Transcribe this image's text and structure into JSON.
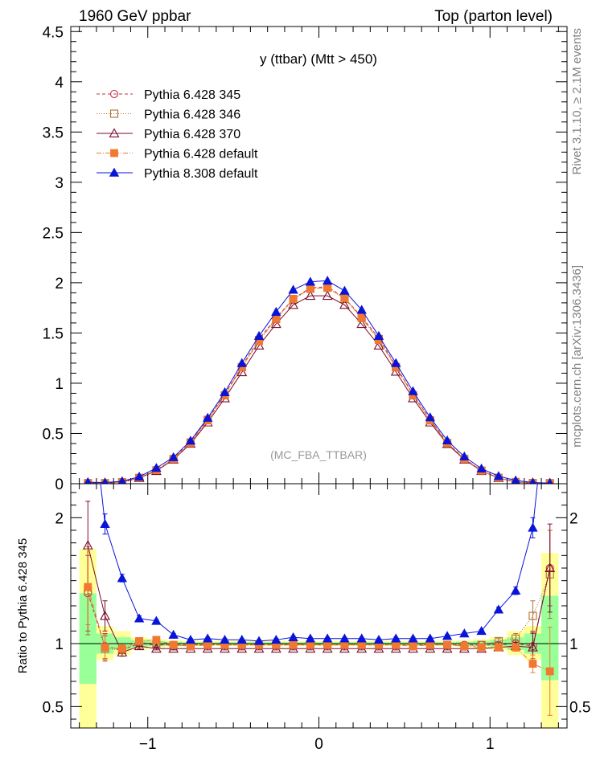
{
  "header": {
    "left": "1960 GeV ppbar",
    "right": "Top (parton level)"
  },
  "side_label_top": "Rivet 3.1.10, ≥ 2.1M events",
  "side_label_bottom": "mcplots.cern.ch [arXiv:1306.3436]",
  "chart_data": [
    {
      "type": "line",
      "title": "y (ttbar) (Mtt > 450)",
      "annotation": "(MC_FBA_TTBAR)",
      "xlim": [
        -1.45,
        1.45
      ],
      "ylim": [
        0,
        4.55
      ],
      "yticks": [
        "0",
        "0.5",
        "1",
        "1.5",
        "2",
        "2.5",
        "3",
        "3.5",
        "4",
        "4.5"
      ],
      "legend_position": "top-left",
      "x": [
        -1.35,
        -1.25,
        -1.15,
        -1.05,
        -0.95,
        -0.85,
        -0.75,
        -0.65,
        -0.55,
        -0.45,
        -0.35,
        -0.25,
        -0.15,
        -0.05,
        0.05,
        0.15,
        0.25,
        0.35,
        0.45,
        0.55,
        0.65,
        0.75,
        0.85,
        0.95,
        1.05,
        1.15,
        1.25,
        1.35
      ],
      "series": [
        {
          "name": "Pythia 6.428 345",
          "color": "#c0304a",
          "marker": "circle-open",
          "dash": "4,3",
          "values": [
            0.004,
            0.006,
            0.016,
            0.058,
            0.132,
            0.25,
            0.415,
            0.64,
            0.89,
            1.17,
            1.44,
            1.65,
            1.84,
            1.95,
            1.96,
            1.85,
            1.66,
            1.45,
            1.17,
            0.89,
            0.64,
            0.41,
            0.25,
            0.13,
            0.058,
            0.016,
            0.006,
            0.004
          ]
        },
        {
          "name": "Pythia 6.428 346",
          "color": "#b07030",
          "marker": "square-open",
          "dash": "1,2",
          "values": [
            0.006,
            0.006,
            0.015,
            0.058,
            0.13,
            0.245,
            0.41,
            0.635,
            0.88,
            1.16,
            1.43,
            1.64,
            1.83,
            1.94,
            1.95,
            1.84,
            1.65,
            1.44,
            1.16,
            0.88,
            0.63,
            0.405,
            0.245,
            0.13,
            0.059,
            0.017,
            0.007,
            0.006
          ]
        },
        {
          "name": "Pythia 6.428 370",
          "color": "#7a0d2a",
          "marker": "triangle-open",
          "dash": "",
          "values": [
            0.007,
            0.007,
            0.015,
            0.057,
            0.127,
            0.24,
            0.398,
            0.61,
            0.85,
            1.11,
            1.375,
            1.59,
            1.78,
            1.87,
            1.87,
            1.78,
            1.59,
            1.375,
            1.115,
            0.85,
            0.61,
            0.395,
            0.24,
            0.127,
            0.057,
            0.016,
            0.006,
            0.007
          ]
        },
        {
          "name": "Pythia 6.428 default",
          "color": "#f07830",
          "marker": "square",
          "dash": "6,2,1,2",
          "values": [
            0.006,
            0.006,
            0.015,
            0.059,
            0.135,
            0.246,
            0.405,
            0.63,
            0.88,
            1.16,
            1.42,
            1.64,
            1.84,
            1.94,
            1.95,
            1.85,
            1.65,
            1.43,
            1.16,
            0.88,
            0.63,
            0.405,
            0.246,
            0.13,
            0.058,
            0.016,
            0.005,
            0.003
          ]
        },
        {
          "name": "Pythia 8.308 default",
          "color": "#0a14d8",
          "marker": "triangle",
          "dash": "",
          "values": [
            0.015,
            0.012,
            0.024,
            0.069,
            0.156,
            0.263,
            0.427,
            0.655,
            0.91,
            1.2,
            1.47,
            1.71,
            1.93,
            2.01,
            2.02,
            1.92,
            1.73,
            1.47,
            1.2,
            0.92,
            0.66,
            0.43,
            0.27,
            0.15,
            0.075,
            0.032,
            0.012,
            0.006
          ]
        }
      ]
    },
    {
      "type": "line",
      "ylabel": "Ratio to Pythia 6.428 345",
      "xlim": [
        -1.45,
        1.45
      ],
      "ylim": [
        0.33,
        2.27
      ],
      "xticks": [
        "−1",
        "0",
        "1"
      ],
      "yticks": [
        "0.5",
        "1",
        "2"
      ],
      "reference_band": {
        "x": [
          -1.35,
          -1.25,
          -1.15,
          -1.05,
          -0.95,
          -0.85,
          -0.75,
          -0.65,
          -0.55,
          -0.45,
          -0.35,
          -0.25,
          -0.15,
          -0.05,
          0.05,
          0.15,
          0.25,
          0.35,
          0.45,
          0.55,
          0.65,
          0.75,
          0.85,
          0.95,
          1.05,
          1.15,
          1.25,
          1.35
        ],
        "green_lo": [
          0.68,
          0.92,
          0.95,
          0.97,
          0.98,
          0.985,
          0.99,
          0.99,
          0.99,
          0.99,
          0.99,
          0.99,
          0.99,
          0.99,
          0.99,
          0.99,
          0.99,
          0.99,
          0.99,
          0.99,
          0.99,
          0.99,
          0.985,
          0.98,
          0.97,
          0.95,
          0.92,
          0.71
        ],
        "green_hi": [
          1.4,
          1.08,
          1.05,
          1.03,
          1.02,
          1.015,
          1.01,
          1.01,
          1.01,
          1.01,
          1.01,
          1.01,
          1.01,
          1.01,
          1.01,
          1.01,
          1.01,
          1.01,
          1.01,
          1.01,
          1.01,
          1.01,
          1.015,
          1.02,
          1.03,
          1.05,
          1.08,
          1.38
        ],
        "yellow_lo": [
          0.33,
          0.87,
          0.91,
          0.95,
          0.965,
          0.975,
          0.98,
          0.98,
          0.98,
          0.98,
          0.98,
          0.98,
          0.98,
          0.98,
          0.98,
          0.98,
          0.98,
          0.98,
          0.98,
          0.98,
          0.98,
          0.98,
          0.975,
          0.965,
          0.95,
          0.91,
          0.87,
          0.33
        ],
        "yellow_hi": [
          1.75,
          1.14,
          1.1,
          1.05,
          1.035,
          1.025,
          1.02,
          1.02,
          1.02,
          1.02,
          1.02,
          1.02,
          1.02,
          1.02,
          1.02,
          1.02,
          1.02,
          1.02,
          1.02,
          1.02,
          1.02,
          1.02,
          1.025,
          1.035,
          1.05,
          1.1,
          1.14,
          1.72
        ]
      },
      "series": [
        {
          "name": "Pythia 6.428 345",
          "color": "#c0304a",
          "marker": "circle-open",
          "dash": "4,3",
          "values": [
            1.4,
            0.98,
            0.95,
            1.0,
            0.99,
            0.99,
            0.99,
            0.99,
            0.99,
            0.99,
            0.99,
            0.99,
            0.99,
            0.99,
            0.99,
            0.99,
            0.99,
            0.99,
            0.99,
            0.99,
            0.99,
            0.99,
            0.99,
            0.99,
            0.99,
            1.0,
            0.98,
            1.6
          ],
          "err": [
            0.3,
            0.1,
            0.03,
            0.02,
            0.01,
            0.01,
            0.01,
            0.01,
            0.01,
            0.01,
            0.01,
            0.01,
            0.01,
            0.01,
            0.01,
            0.01,
            0.01,
            0.01,
            0.01,
            0.01,
            0.01,
            0.01,
            0.01,
            0.01,
            0.02,
            0.03,
            0.1,
            0.3
          ]
        },
        {
          "name": "Pythia 6.428 346",
          "color": "#b07030",
          "marker": "square-open",
          "dash": "1,2",
          "values": [
            1.42,
            0.96,
            0.95,
            1.01,
            1.0,
            0.98,
            0.99,
            1.0,
            0.99,
            0.99,
            0.99,
            0.99,
            0.99,
            0.99,
            0.99,
            0.99,
            0.99,
            0.99,
            0.99,
            0.99,
            0.99,
            0.99,
            0.98,
            0.99,
            1.02,
            1.04,
            1.22,
            1.55
          ],
          "err": [
            0.35,
            0.1,
            0.03,
            0.02,
            0.01,
            0.01,
            0.01,
            0.01,
            0.01,
            0.01,
            0.01,
            0.01,
            0.01,
            0.01,
            0.01,
            0.01,
            0.01,
            0.01,
            0.01,
            0.01,
            0.01,
            0.01,
            0.01,
            0.01,
            0.02,
            0.04,
            0.12,
            0.35
          ]
        },
        {
          "name": "Pythia 6.428 370",
          "color": "#7a0d2a",
          "marker": "triangle-open",
          "dash": "",
          "values": [
            1.78,
            1.22,
            0.93,
            0.98,
            0.96,
            0.96,
            0.96,
            0.96,
            0.96,
            0.96,
            0.96,
            0.96,
            0.96,
            0.96,
            0.96,
            0.96,
            0.96,
            0.96,
            0.96,
            0.96,
            0.96,
            0.96,
            0.96,
            0.96,
            0.97,
            0.98,
            0.97,
            1.6
          ],
          "err": [
            0.35,
            0.12,
            0.03,
            0.02,
            0.01,
            0.01,
            0.01,
            0.01,
            0.01,
            0.01,
            0.01,
            0.01,
            0.01,
            0.01,
            0.01,
            0.01,
            0.01,
            0.01,
            0.01,
            0.01,
            0.01,
            0.01,
            0.01,
            0.01,
            0.02,
            0.03,
            0.12,
            0.35
          ]
        },
        {
          "name": "Pythia 6.428 default",
          "color": "#f07830",
          "marker": "square",
          "dash": "6,2,1,2",
          "values": [
            1.45,
            0.97,
            0.96,
            1.02,
            1.03,
            0.99,
            0.98,
            0.99,
            0.99,
            0.99,
            0.99,
            0.99,
            0.99,
            0.99,
            0.99,
            0.99,
            0.99,
            0.99,
            0.99,
            0.98,
            0.99,
            0.99,
            0.98,
            0.97,
            0.97,
            0.97,
            0.84,
            0.78
          ],
          "err": [
            0.3,
            0.1,
            0.03,
            0.02,
            0.01,
            0.01,
            0.01,
            0.01,
            0.01,
            0.01,
            0.01,
            0.01,
            0.01,
            0.01,
            0.01,
            0.01,
            0.01,
            0.01,
            0.01,
            0.01,
            0.01,
            0.01,
            0.01,
            0.01,
            0.02,
            0.03,
            0.07,
            0.35
          ]
        },
        {
          "name": "Pythia 8.308 default",
          "color": "#0a14d8",
          "marker": "triangle",
          "dash": "",
          "values": [
            3.2,
            1.95,
            1.52,
            1.2,
            1.18,
            1.07,
            1.03,
            1.04,
            1.03,
            1.03,
            1.02,
            1.03,
            1.05,
            1.04,
            1.04,
            1.04,
            1.04,
            1.03,
            1.04,
            1.04,
            1.04,
            1.06,
            1.08,
            1.1,
            1.27,
            1.42,
            1.92,
            3.2
          ],
          "err": [
            0.4,
            0.08,
            0.03,
            0.02,
            0.01,
            0.01,
            0.01,
            0.01,
            0.01,
            0.01,
            0.01,
            0.01,
            0.01,
            0.01,
            0.01,
            0.01,
            0.01,
            0.01,
            0.01,
            0.01,
            0.01,
            0.01,
            0.01,
            0.01,
            0.02,
            0.03,
            0.08,
            0.4
          ]
        }
      ]
    }
  ]
}
